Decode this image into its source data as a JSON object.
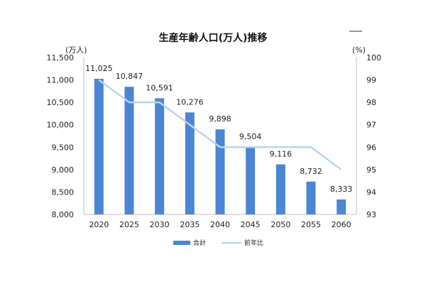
{
  "chart_data": {
    "type": "bar",
    "title": "生産年齢人口(万人)推移",
    "left_unit": "(万人)",
    "right_unit": "(%)",
    "categories": [
      "2020",
      "2025",
      "2030",
      "2035",
      "2040",
      "2045",
      "2050",
      "2055",
      "2060"
    ],
    "series": [
      {
        "name": "合計",
        "kind": "bar",
        "axis": "left",
        "color": "#4a86d4",
        "values": [
          11025,
          10847,
          10591,
          10276,
          9898,
          9504,
          9116,
          8732,
          8333
        ],
        "labels": [
          "11,025",
          "10,847",
          "10,591",
          "10,276",
          "9,898",
          "9,504",
          "9,116",
          "8,732",
          "8,333"
        ]
      },
      {
        "name": "前年比",
        "kind": "line",
        "axis": "right",
        "color": "#bcd3ec",
        "values": [
          99,
          98,
          98,
          97,
          96,
          96,
          96,
          96,
          95
        ]
      }
    ],
    "ylim_left": [
      8000,
      11500
    ],
    "yticks_left": [
      "8,000",
      "8,500",
      "9,000",
      "9,500",
      "10,000",
      "10,500",
      "11,000",
      "11,500"
    ],
    "ylim_right": [
      93,
      100
    ],
    "yticks_right": [
      "93",
      "94",
      "95",
      "96",
      "97",
      "98",
      "99",
      "100"
    ],
    "grid": false,
    "legend_position": "bottom"
  }
}
